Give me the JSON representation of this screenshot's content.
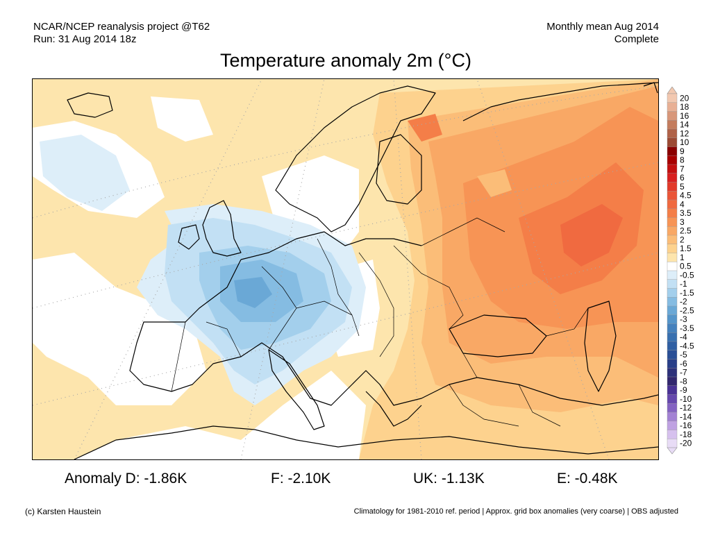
{
  "header": {
    "left_line1": "NCAR/NCEP reanalysis project @T62",
    "left_line2": "Run: 31 Aug 2014 18z",
    "right_line1": "Monthly mean Aug 2014",
    "right_line2": "Complete"
  },
  "title": "Temperature anomaly 2m (°C)",
  "colorbar": {
    "labels": [
      "20",
      "18",
      "16",
      "14",
      "12",
      "10",
      "9",
      "8",
      "7",
      "6",
      "5",
      "4.5",
      "4",
      "3.5",
      "3",
      "2.5",
      "2",
      "1.5",
      "1",
      "0.5",
      "-0.5",
      "-1",
      "-1.5",
      "-2",
      "-2.5",
      "-3",
      "-3.5",
      "-4",
      "-4.5",
      "-5",
      "-6",
      "-7",
      "-8",
      "-9",
      "-10",
      "-12",
      "-14",
      "-16",
      "-18",
      "-20"
    ],
    "colors": [
      "#f2c8b0",
      "#e8b095",
      "#d8977a",
      "#c47c5e",
      "#b06248",
      "#9c4a34",
      "#8a0000",
      "#a80000",
      "#c41010",
      "#d82020",
      "#e23a2a",
      "#ea5538",
      "#f06a40",
      "#f47e48",
      "#f79455",
      "#f9a865",
      "#fbbd78",
      "#fdd28e",
      "#fde5ad",
      "#ffffff",
      "#ddeef9",
      "#c2e0f4",
      "#a3cfec",
      "#85bce2",
      "#6aa8d6",
      "#5595ca",
      "#4581bd",
      "#3870b0",
      "#2f5fa3",
      "#2a4f96",
      "#293f88",
      "#2d317a",
      "#32276e",
      "#4a3295",
      "#6648ad",
      "#8463c2",
      "#a382d4",
      "#bfa2e2",
      "#d6c1ee",
      "#e8dcf6"
    ]
  },
  "stats": [
    {
      "label": "Anomaly D: -1.86K"
    },
    {
      "label": "F: -2.10K"
    },
    {
      "label": "UK: -1.13K"
    },
    {
      "label": "E: -0.48K"
    }
  ],
  "footer": {
    "left": "(c) Karsten Haustein",
    "right": "Climatology for 1981-2010 ref. period | Approx. grid box anomalies (very coarse) | OBS adjusted"
  }
}
